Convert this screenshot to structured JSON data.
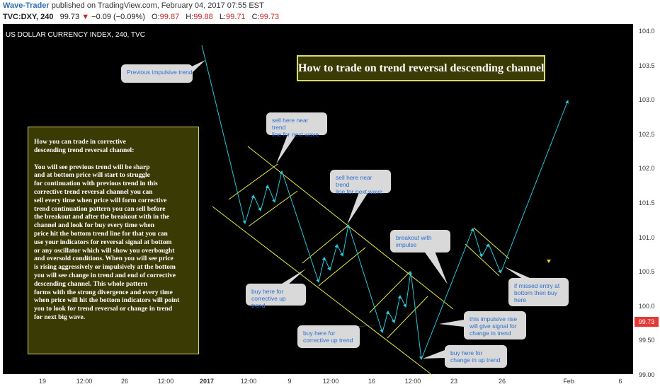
{
  "header": {
    "author": "Wave-Trader",
    "published": "published on TradingView.com, February 04, 2017 07:55 EST",
    "symbol": "TVC:DXY, 240",
    "last": "99.73",
    "change_arrow": "▼",
    "change": "−0.09 (−0.09%)",
    "open_label": "O:",
    "open": "99.87",
    "high_label": "H:",
    "high": "99.88",
    "low_label": "L:",
    "low": "99.71",
    "close_label": "C:",
    "close": "99.73"
  },
  "chart": {
    "title": "US DOLLAR CURRENCY INDEX, 240, TVC",
    "price_tag": "99.73",
    "y_ticks": [
      "104.0",
      "103.5",
      "103.0",
      "102.5",
      "102.0",
      "101.5",
      "101.0",
      "100.5",
      "100.0",
      "99.50",
      "99.00"
    ],
    "x_ticks": [
      {
        "label": "19",
        "bold": false
      },
      {
        "label": "12:00",
        "bold": false
      },
      {
        "label": "26",
        "bold": false
      },
      {
        "label": "12:00",
        "bold": false
      },
      {
        "label": "2017",
        "bold": true
      },
      {
        "label": "12:00",
        "bold": false
      },
      {
        "label": "9",
        "bold": false
      },
      {
        "label": "12:00",
        "bold": false
      },
      {
        "label": "16",
        "bold": false
      },
      {
        "label": "12:00",
        "bold": false
      },
      {
        "label": "23",
        "bold": false
      },
      {
        "label": "26",
        "bold": false
      },
      {
        "label": "Feb",
        "bold": false
      },
      {
        "label": "6",
        "bold": false
      }
    ],
    "headline": "How to trade on trend reversal descending channel",
    "explanation": {
      "heading": "How you can trade in corrective\ndescending trend reversal channel:",
      "body": "You will see previous trend will be sharp\nand at bottom price will start to struggle\nfor continuation with previous trend in this\ncorrective trend reversal channel you can\nsell every time when price will form corrective\ntrend continuation pattern you can sell before\nthe breakout and after the breakout with in the\nchannel and look for buy every time when\nprice hit the bottom trend line for that you can\nuse your indicators for reversal signal at bottom\nor any oscillator which will show you overbought\nand oversold conditions. When you will see price\nis rising aggressively or impulsively at the bottom\nyou will see change in trend and end of corrective\ndescending channel. This whole pattern\nforms with the strong divergence and every time\nwhen price will hit the bottom indicators will point\nyou to look for trend reversal or change in trend\nfor next big wave."
    },
    "bubbles": {
      "previous_trend": "Previous impulsive trend",
      "sell_1": "sell here near trend\nline for next wave",
      "sell_2": "sell here near trend\nline for next wave",
      "breakout": "breakout with\nimpulse",
      "buy_1": "buy here for\ncorrective up trend",
      "buy_2": "buy here for\ncorrective up trend",
      "impulsive_rise": "this impulsive rise\nwill give signal for\nchange in trend",
      "buy_change": "buy here for\nchange in up trend",
      "missed_entry": "if missed entry at\nbottom then buy\nhere"
    }
  },
  "colors": {
    "background": "#000000",
    "channel": "#e8e84a",
    "path": "#29c6d6",
    "bubble_bg": "#d9d9d9",
    "bubble_text": "#2f6fd0",
    "box_bg": "#3a3a05",
    "price_tag": "#e53935"
  }
}
